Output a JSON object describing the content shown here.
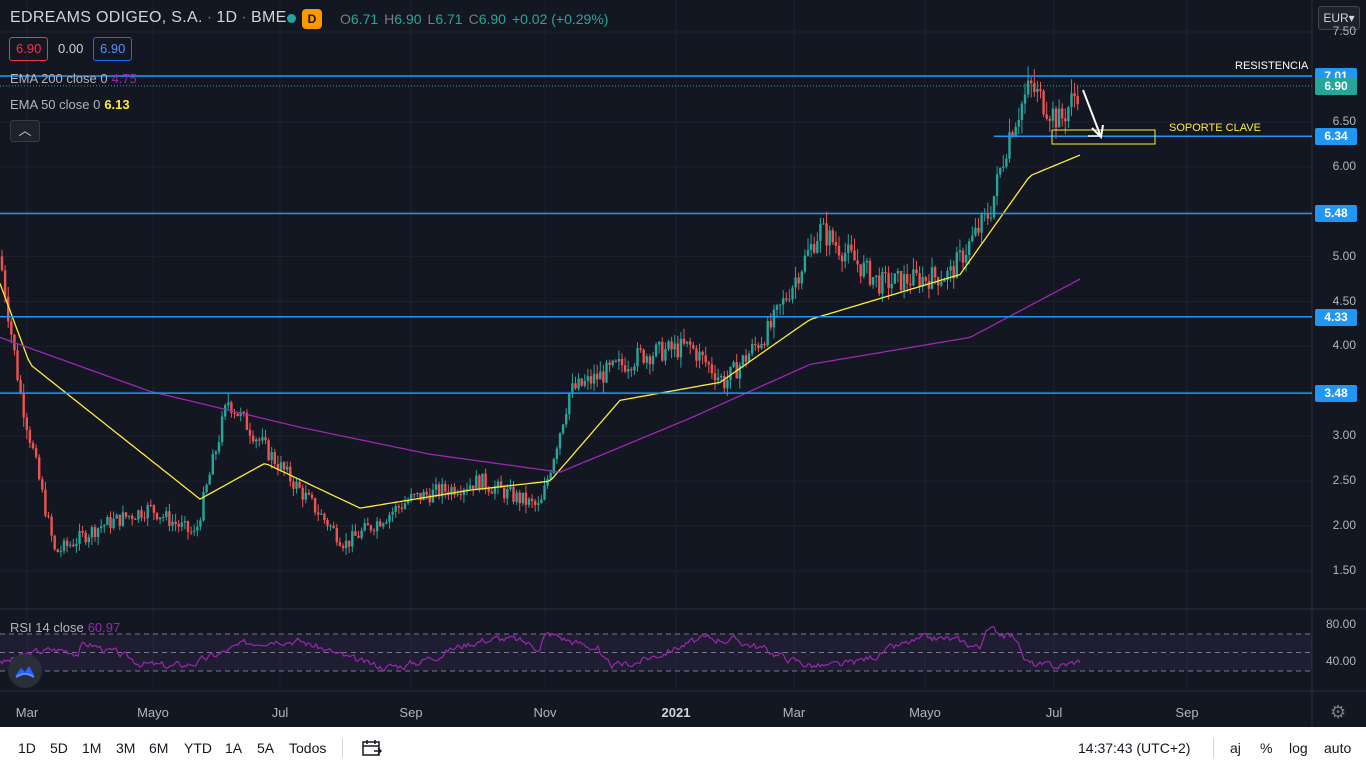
{
  "header": {
    "symbol_name": "EDREAMS ODIGEO, S.A.",
    "interval": "1D",
    "exchange": "BME",
    "badge": "D",
    "ohlc": {
      "open_key": "O",
      "open": "6.71",
      "high_key": "H",
      "high": "6.90",
      "low_key": "L",
      "low": "6.71",
      "close_key": "C",
      "close": "6.90",
      "change": "+0.02 (+0.29%)"
    },
    "bid": "6.90",
    "spread": "0.00",
    "ask": "6.90",
    "currency": "EUR"
  },
  "indicators": {
    "ema200": {
      "label": "EMA 200 close 0",
      "value": "4.75",
      "color": "#9c27b0"
    },
    "ema50": {
      "label": "EMA 50 close 0",
      "value": "6.13",
      "color": "#ffeb3b"
    },
    "rsi": {
      "label": "RSI 14 close",
      "value": "60.97",
      "color": "#9c27b0"
    },
    "collapse_icon": "chevron-up-icon"
  },
  "annotations": {
    "resistance": "RESISTENCIA",
    "support": "SOPORTE CLAVE"
  },
  "bottom_bar": {
    "timeframes": [
      "1D",
      "5D",
      "1M",
      "3M",
      "6M",
      "YTD",
      "1A",
      "5A",
      "Todos"
    ],
    "time": "14:37:43 (UTC+2)",
    "adjust": "aj",
    "percent": "%",
    "log": "log",
    "auto": "auto"
  },
  "colors": {
    "background": "#131722",
    "up": "#26a69a",
    "down": "#ef5350",
    "level_line": "#2196f3",
    "support_box": "#ffeb3b",
    "arrow": "#ffffff"
  },
  "chart_data": {
    "type": "candlestick",
    "y_axis": {
      "ticks": [
        "7.50",
        "7.00",
        "6.50",
        "6.00",
        "5.50",
        "5.00",
        "4.50",
        "4.00",
        "3.50",
        "3.00",
        "2.50",
        "2.00",
        "1.50"
      ],
      "range": [
        1.2,
        7.6
      ]
    },
    "x_axis": {
      "ticks": [
        "Mar",
        "Mayo",
        "Jul",
        "Sep",
        "Nov",
        "2021",
        "Mar",
        "Mayo",
        "Jul",
        "Sep"
      ]
    },
    "levels": [
      {
        "label": "7.01",
        "value": 7.01
      },
      {
        "label": "6.90",
        "value": 6.9,
        "style": "dotted",
        "color": "#26a69a"
      },
      {
        "label": "6.34",
        "value": 6.34
      },
      {
        "label": "5.48",
        "value": 5.48
      },
      {
        "label": "4.33",
        "value": 4.33
      },
      {
        "label": "3.48",
        "value": 3.48
      }
    ],
    "close_series_anchors": [
      [
        "Feb 2020",
        5.0
      ],
      [
        "Mar 2020",
        3.5
      ],
      [
        "Mar 2020",
        1.7
      ],
      [
        "Apr 2020",
        2.0
      ],
      [
        "May 2020",
        2.2
      ],
      [
        "Jun 2020",
        1.9
      ],
      [
        "Jun 2020",
        3.4
      ],
      [
        "Jul 2020",
        2.8
      ],
      [
        "Aug 2020",
        1.8
      ],
      [
        "Sep 2020",
        2.3
      ],
      [
        "Oct 2020",
        2.5
      ],
      [
        "Nov 2020",
        2.2
      ],
      [
        "Nov 2020",
        3.5
      ],
      [
        "Dec 2020",
        3.9
      ],
      [
        "Jan 2021",
        4.0
      ],
      [
        "Jan 2021",
        3.6
      ],
      [
        "Feb 2021",
        4.2
      ],
      [
        "Mar 2021",
        5.3
      ],
      [
        "Apr 2021",
        4.7
      ],
      [
        "May 2021",
        4.8
      ],
      [
        "Jun 2021",
        5.5
      ],
      [
        "Jun 2021",
        6.4
      ],
      [
        "Jun 2021",
        6.9
      ],
      [
        "Jul 2021",
        6.5
      ],
      [
        "Jul 2021",
        6.9
      ]
    ],
    "ema50_anchors": [
      [
        "Feb 2020",
        4.7
      ],
      [
        "Mar 2020",
        3.8
      ],
      [
        "May 2020",
        2.3
      ],
      [
        "Jun 2020",
        2.7
      ],
      [
        "Aug 2020",
        2.2
      ],
      [
        "Oct 2020",
        2.4
      ],
      [
        "Nov 2020",
        2.5
      ],
      [
        "Dec 2020",
        3.4
      ],
      [
        "Jan 2021",
        3.6
      ],
      [
        "Mar 2021",
        4.3
      ],
      [
        "May 2021",
        4.8
      ],
      [
        "Jun 2021",
        5.9
      ],
      [
        "Jul 2021",
        6.13
      ]
    ],
    "ema200_anchors": [
      [
        "Feb 2020",
        4.1
      ],
      [
        "May 2020",
        3.5
      ],
      [
        "Jul 2020",
        3.1
      ],
      [
        "Sep 2020",
        2.8
      ],
      [
        "Nov 2020",
        2.6
      ],
      [
        "Jan 2021",
        3.2
      ],
      [
        "Mar 2021",
        3.8
      ],
      [
        "May 2021",
        4.1
      ],
      [
        "Jul 2021",
        4.75
      ]
    ],
    "rsi": {
      "ticks": [
        "80.00",
        "40.00"
      ],
      "levels": [
        70,
        50,
        30
      ],
      "last": 60.97
    }
  }
}
